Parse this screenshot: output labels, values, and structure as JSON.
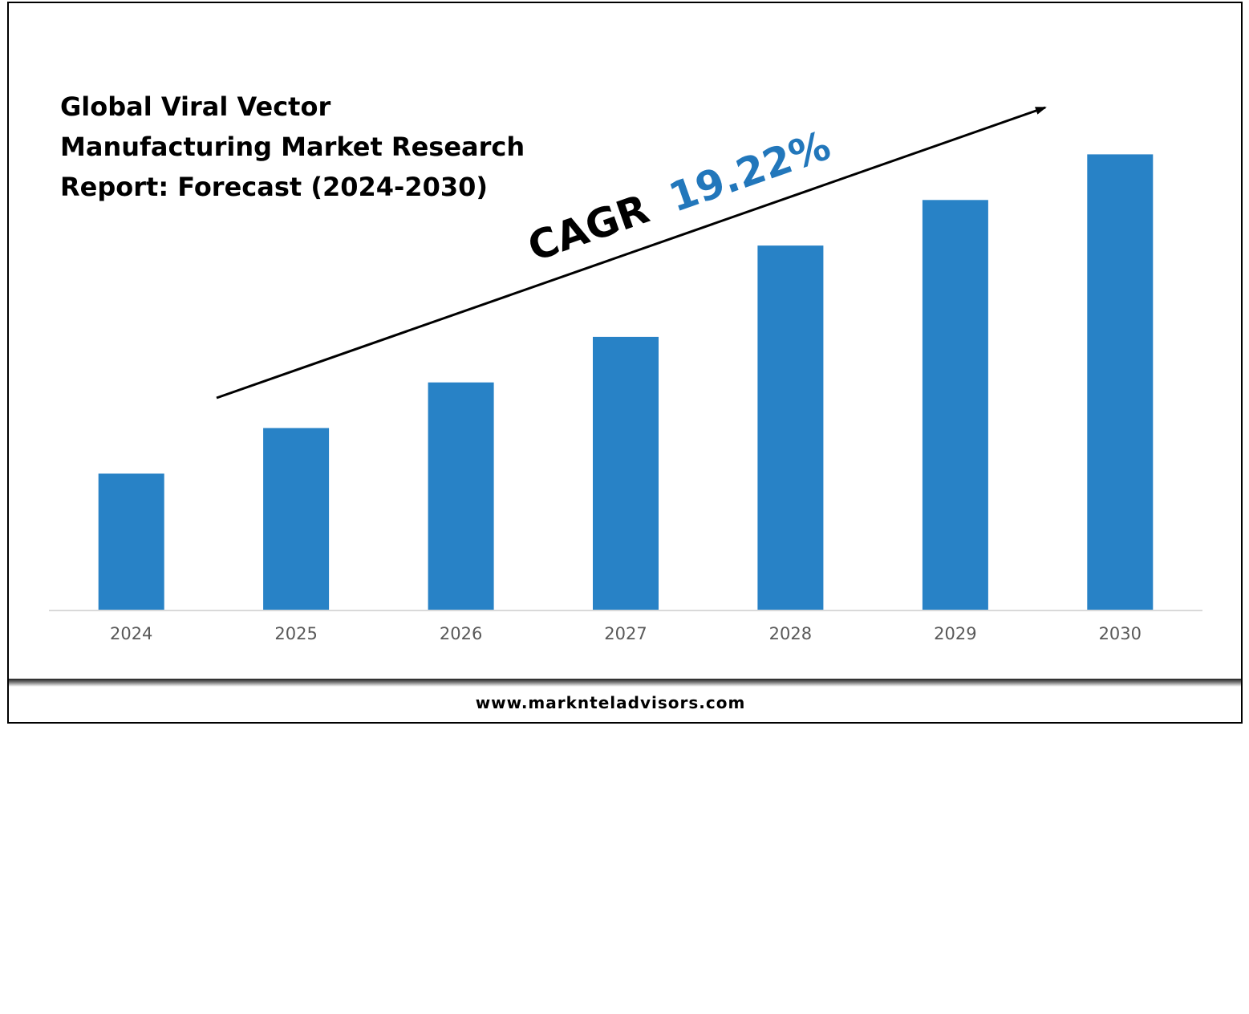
{
  "chart_data": {
    "type": "bar",
    "title": "Global Viral Vector Manufacturing Market Research Report: Forecast (2024-2030)",
    "categories": [
      "2024",
      "2025",
      "2026",
      "2027",
      "2028",
      "2029",
      "2030"
    ],
    "values": [
      3.0,
      4.0,
      5.0,
      6.0,
      8.0,
      9.0,
      10.0
    ],
    "ylim": [
      0,
      10.5
    ],
    "xlabel": "",
    "ylabel": "",
    "grid": false,
    "bar_color": "#2882c6",
    "annotation": {
      "prefix": "CAGR",
      "value": "19.22%",
      "prefix_color": "#000000",
      "value_color": "#2277bb"
    }
  },
  "footer": {
    "website": "www.marknteladvisors.com"
  }
}
